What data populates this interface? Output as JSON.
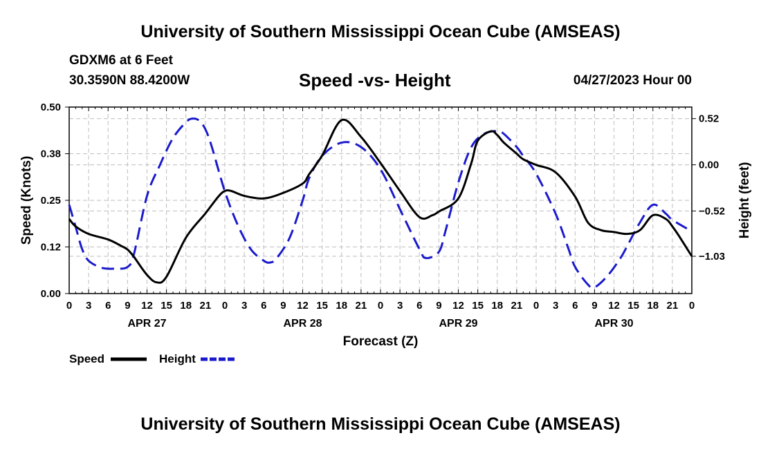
{
  "header": {
    "title": "University of Southern Mississippi Ocean Cube (AMSEAS)",
    "station": "GDXM6 at 6 Feet",
    "coords": "30.3590N  88.4200W",
    "subtitle": "Speed -vs- Height",
    "datetime": "04/27/2023 Hour 00"
  },
  "footer": {
    "title": "University of Southern Mississippi Ocean Cube (AMSEAS)"
  },
  "legend": {
    "speed_label": "Speed",
    "height_label": "Height"
  },
  "chart_data": {
    "type": "line",
    "title": "Speed -vs- Height",
    "xlabel": "Forecast (Z)",
    "ylabel_left": "Speed (Knots)",
    "ylabel_right": "Height (feet)",
    "x_range_hours": [
      0,
      96
    ],
    "ylim_left": [
      0,
      0.5
    ],
    "ylim_right": [
      -1.45,
      0.65
    ],
    "x_tick_labels": [
      "0",
      "3",
      "6",
      "9",
      "12",
      "15",
      "18",
      "21",
      "0",
      "3",
      "6",
      "9",
      "12",
      "15",
      "18",
      "21",
      "0",
      "3",
      "6",
      "9",
      "12",
      "15",
      "18",
      "21",
      "0",
      "3",
      "6",
      "9",
      "12",
      "15",
      "18",
      "21",
      "0"
    ],
    "day_labels": [
      {
        "hour": 12,
        "label": "APR 27"
      },
      {
        "hour": 36,
        "label": "APR 28"
      },
      {
        "hour": 60,
        "label": "APR 29"
      },
      {
        "hour": 84,
        "label": "APR 30"
      }
    ],
    "y_left_ticks": [
      {
        "value": 0.0,
        "label": "0.00"
      },
      {
        "value": 0.125,
        "label": "0.12"
      },
      {
        "value": 0.25,
        "label": "0.25"
      },
      {
        "value": 0.375,
        "label": "0.38"
      },
      {
        "value": 0.5,
        "label": "0.50"
      }
    ],
    "y_right_ticks": [
      {
        "value": 0.52,
        "label": "0.52"
      },
      {
        "value": 0.0,
        "label": "0.00"
      },
      {
        "value": -0.52,
        "label": "−0.52"
      },
      {
        "value": -1.03,
        "label": "−1.03"
      }
    ],
    "series": [
      {
        "name": "Speed",
        "axis": "left",
        "color": "#000000",
        "dash": false,
        "x": [
          0,
          1,
          3,
          6,
          8,
          9,
          10,
          12,
          13.5,
          15,
          18,
          21,
          23,
          24,
          25,
          27,
          30,
          33,
          36,
          37,
          39,
          42,
          45,
          48,
          51,
          54,
          56,
          57,
          60,
          62,
          63,
          65,
          66,
          67,
          69,
          70,
          72,
          75,
          78,
          80,
          82,
          84,
          86,
          88,
          90,
          92,
          93,
          94,
          96
        ],
        "y": [
          0.2,
          0.18,
          0.16,
          0.145,
          0.128,
          0.118,
          0.098,
          0.05,
          0.03,
          0.045,
          0.15,
          0.215,
          0.26,
          0.275,
          0.275,
          0.262,
          0.255,
          0.27,
          0.295,
          0.32,
          0.37,
          0.465,
          0.42,
          0.35,
          0.275,
          0.205,
          0.21,
          0.22,
          0.255,
          0.35,
          0.41,
          0.435,
          0.425,
          0.405,
          0.375,
          0.36,
          0.345,
          0.325,
          0.26,
          0.19,
          0.17,
          0.165,
          0.16,
          0.17,
          0.21,
          0.2,
          0.18,
          0.155,
          0.1
        ]
      },
      {
        "name": "Height",
        "axis": "right",
        "color": "#1a1acc",
        "dash": true,
        "x": [
          0,
          1,
          2,
          3,
          5,
          7,
          9,
          10,
          12,
          14,
          16,
          18,
          19,
          20,
          21,
          22,
          24,
          26,
          28,
          30,
          31,
          32,
          34,
          36,
          37,
          39,
          42,
          45,
          48,
          51,
          54,
          55,
          57,
          58,
          60,
          62,
          64,
          66,
          67,
          69,
          70,
          72,
          75,
          77,
          78,
          80,
          81,
          83,
          85,
          86,
          88,
          90,
          92,
          93,
          96
        ],
        "y": [
          -0.45,
          -0.7,
          -0.95,
          -1.08,
          -1.16,
          -1.17,
          -1.15,
          -1.0,
          -0.35,
          0.0,
          0.3,
          0.48,
          0.52,
          0.5,
          0.4,
          0.2,
          -0.3,
          -0.68,
          -0.95,
          -1.08,
          -1.1,
          -1.05,
          -0.82,
          -0.4,
          -0.15,
          0.1,
          0.25,
          0.2,
          -0.05,
          -0.5,
          -0.95,
          -1.05,
          -0.98,
          -0.75,
          -0.2,
          0.2,
          0.35,
          0.38,
          0.35,
          0.2,
          0.1,
          -0.1,
          -0.55,
          -0.95,
          -1.15,
          -1.35,
          -1.38,
          -1.25,
          -1.05,
          -0.92,
          -0.65,
          -0.45,
          -0.55,
          -0.62,
          -0.75
        ]
      }
    ]
  }
}
